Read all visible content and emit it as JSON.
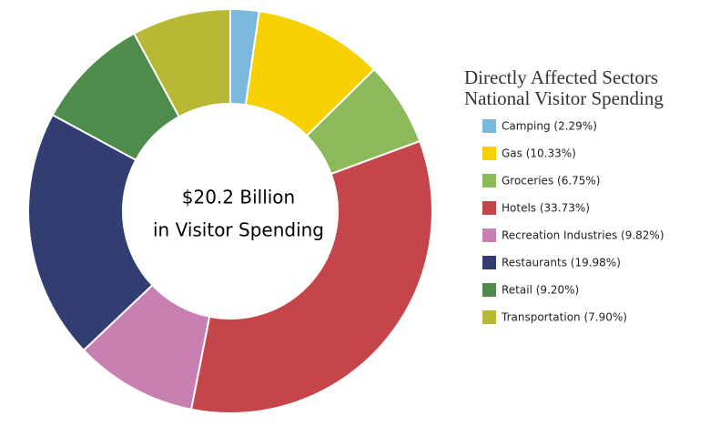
{
  "chart_data": {
    "type": "donut",
    "title": [
      "Directly Affected Sectors",
      "National Visitor Spending"
    ],
    "annotations": [
      "$20.2 Billion",
      "in Visitor Spending"
    ],
    "categories": [
      "Camping (2.29%)",
      "Gas (10.33%)",
      "Groceries (6.75%)",
      "Hotels (33.73%)",
      "Recreation Industries (9.82%)",
      "Restaurants (19.98%)",
      "Retail (9.20%)",
      "Transportation (7.90%)"
    ],
    "values": [
      2.29,
      10.33,
      6.75,
      33.73,
      9.82,
      19.98,
      9.2,
      7.9
    ],
    "colors": [
      "#7ab8dd",
      "#f6d000",
      "#8cba5a",
      "#c4454a",
      "#c880b2",
      "#323d72",
      "#4f8c4b",
      "#b7b834"
    ]
  }
}
